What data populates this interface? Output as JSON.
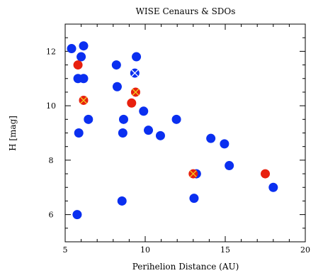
{
  "chart_data": {
    "type": "scatter",
    "title": "WISE Cenaurs & SDOs",
    "xlabel": "Perihelion Distance (AU)",
    "ylabel": "H [mag]",
    "xlim": [
      5,
      20
    ],
    "ylim": [
      13,
      5
    ],
    "y_inverted": true,
    "xticks": [
      5,
      10,
      15,
      20
    ],
    "yticks": [
      6,
      8,
      10,
      12
    ],
    "grid": false,
    "legend": "none",
    "series": [
      {
        "marker": "blue-circle",
        "color": "#0a2ff0",
        "points": [
          {
            "x": 5.75,
            "y": 6.0
          },
          {
            "x": 8.55,
            "y": 6.5
          },
          {
            "x": 13.05,
            "y": 6.6
          },
          {
            "x": 18.0,
            "y": 7.0
          },
          {
            "x": 13.2,
            "y": 7.5
          },
          {
            "x": 15.25,
            "y": 7.8
          },
          {
            "x": 14.1,
            "y": 8.8
          },
          {
            "x": 14.95,
            "y": 8.6
          },
          {
            "x": 10.95,
            "y": 8.9
          },
          {
            "x": 10.2,
            "y": 9.1
          },
          {
            "x": 8.6,
            "y": 9.0
          },
          {
            "x": 5.85,
            "y": 9.0
          },
          {
            "x": 6.45,
            "y": 9.5
          },
          {
            "x": 8.65,
            "y": 9.5
          },
          {
            "x": 11.95,
            "y": 9.5
          },
          {
            "x": 9.9,
            "y": 9.8
          },
          {
            "x": 5.8,
            "y": 11.0
          },
          {
            "x": 6.15,
            "y": 11.0
          },
          {
            "x": 8.25,
            "y": 10.7
          },
          {
            "x": 8.2,
            "y": 11.5
          },
          {
            "x": 6.0,
            "y": 11.8
          },
          {
            "x": 9.45,
            "y": 11.8
          },
          {
            "x": 5.4,
            "y": 12.1
          },
          {
            "x": 6.15,
            "y": 12.2
          }
        ]
      },
      {
        "marker": "red-circle",
        "color": "#e8200e",
        "points": [
          {
            "x": 17.5,
            "y": 7.5
          },
          {
            "x": 9.15,
            "y": 10.1
          },
          {
            "x": 5.8,
            "y": 11.5
          }
        ]
      },
      {
        "marker": "red-circle-yellow-x",
        "color": "#e8200e",
        "cross_color": "#f0d020",
        "points": [
          {
            "x": 13.0,
            "y": 7.5
          },
          {
            "x": 6.15,
            "y": 10.2
          },
          {
            "x": 9.4,
            "y": 10.5
          }
        ]
      },
      {
        "marker": "blue-circle-white-x",
        "color": "#0a2ff0",
        "cross_color": "#ffffff",
        "points": [
          {
            "x": 9.35,
            "y": 11.2
          }
        ]
      }
    ]
  }
}
